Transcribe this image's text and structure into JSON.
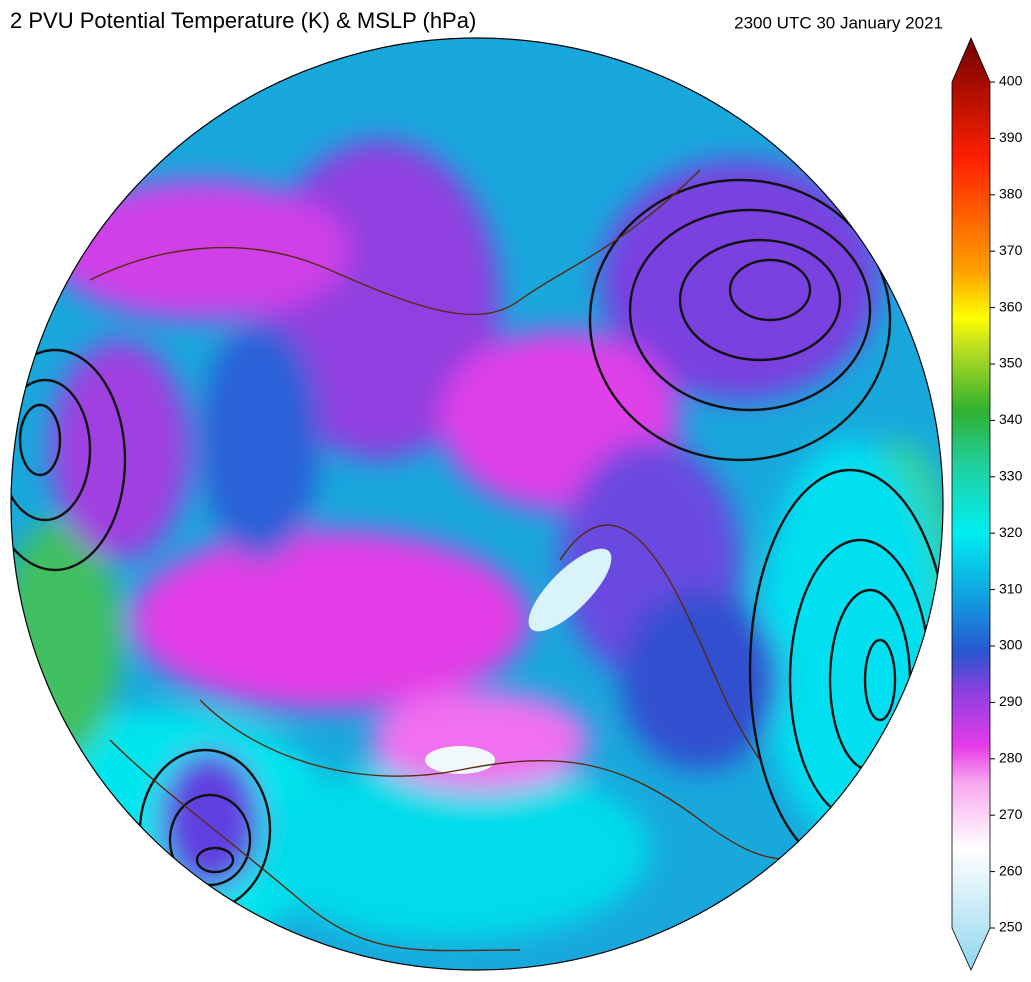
{
  "header": {
    "title": "2 PVU Potential Temperature (K) & MSLP (hPa)",
    "time": "2300 UTC 30 January 2021"
  },
  "colorbar": {
    "range": [
      250,
      400
    ],
    "ticks": [
      250,
      260,
      270,
      280,
      290,
      300,
      310,
      320,
      330,
      340,
      350,
      360,
      370,
      380,
      390,
      400
    ]
  }
}
